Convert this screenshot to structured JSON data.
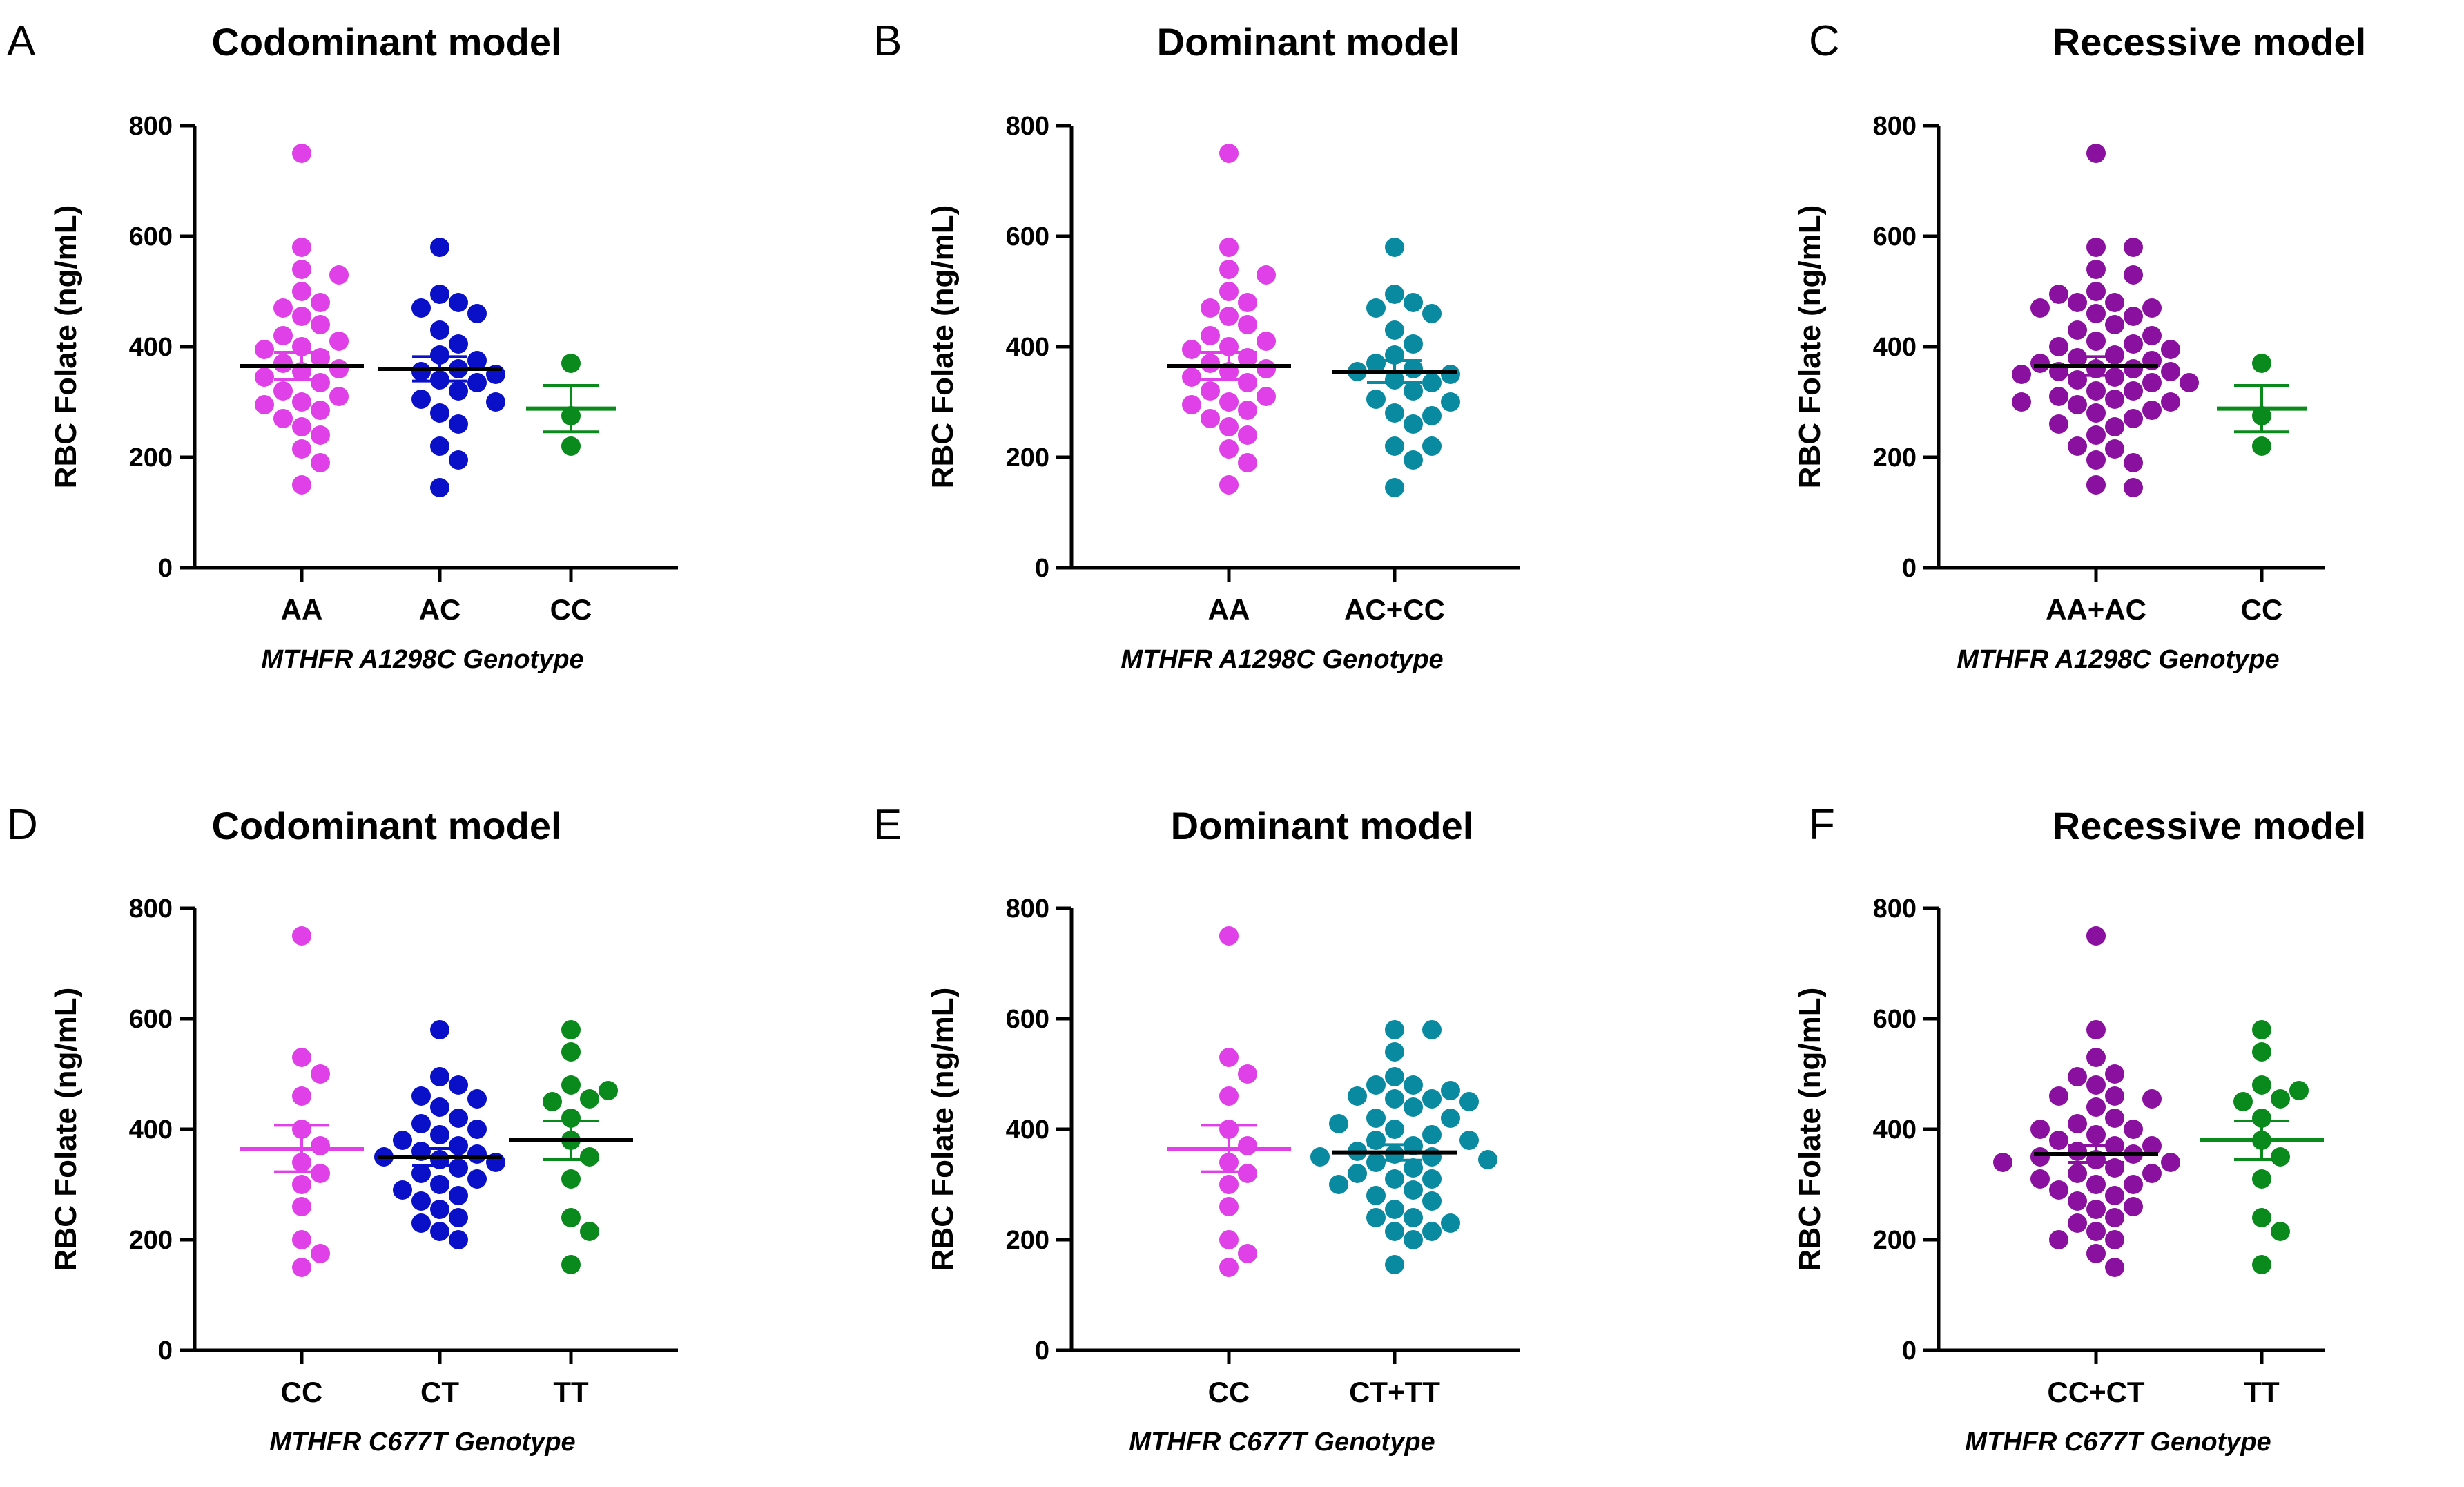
{
  "colors": {
    "magenta": "#e040e8",
    "blue": "#0a10c8",
    "green": "#0a8a1c",
    "teal": "#0a8aa0",
    "purple": "#8a10a0",
    "mean_line": "#000000"
  },
  "chart_data": [
    {
      "type": "scatter",
      "panel": "A",
      "title": "Codominant model",
      "ylabel": "RBC Folate (ng/mL)",
      "xlabel": "MTHFR A1298C Genotype",
      "ylim": [
        0,
        800
      ],
      "yticks": [
        0,
        200,
        400,
        600,
        800
      ],
      "groups": [
        {
          "name": "AA",
          "color": "magenta",
          "mean": 365,
          "sem": 25,
          "values": [
            750,
            580,
            540,
            530,
            500,
            480,
            470,
            455,
            440,
            420,
            410,
            400,
            395,
            380,
            370,
            360,
            355,
            345,
            335,
            320,
            310,
            300,
            295,
            285,
            270,
            255,
            240,
            215,
            190,
            150
          ]
        },
        {
          "name": "AC",
          "color": "blue",
          "mean": 360,
          "sem": 22,
          "values": [
            580,
            495,
            480,
            470,
            460,
            430,
            405,
            385,
            375,
            360,
            355,
            350,
            340,
            335,
            320,
            305,
            300,
            280,
            260,
            220,
            195,
            145
          ]
        },
        {
          "name": "CC",
          "color": "green",
          "mean": 288,
          "sem": 42,
          "values": [
            370,
            275,
            220
          ]
        }
      ]
    },
    {
      "type": "scatter",
      "panel": "B",
      "title": "Dominant model",
      "ylabel": "RBC Folate (ng/mL)",
      "xlabel": "MTHFR A1298C Genotype",
      "ylim": [
        0,
        800
      ],
      "yticks": [
        0,
        200,
        400,
        600,
        800
      ],
      "groups": [
        {
          "name": "AA",
          "color": "magenta",
          "mean": 365,
          "sem": 25,
          "values": [
            750,
            580,
            540,
            530,
            500,
            480,
            470,
            455,
            440,
            420,
            410,
            400,
            395,
            380,
            370,
            360,
            355,
            345,
            335,
            320,
            310,
            300,
            295,
            285,
            270,
            255,
            240,
            215,
            190,
            150
          ]
        },
        {
          "name": "AC+CC",
          "color": "teal",
          "mean": 355,
          "sem": 20,
          "values": [
            580,
            495,
            480,
            470,
            460,
            430,
            405,
            385,
            370,
            360,
            355,
            350,
            340,
            335,
            320,
            305,
            300,
            280,
            275,
            260,
            220,
            220,
            195,
            145
          ]
        }
      ]
    },
    {
      "type": "scatter",
      "panel": "C",
      "title": "Recessive model",
      "ylabel": "RBC Folate (ng/mL)",
      "xlabel": "MTHFR A1298C Genotype",
      "ylim": [
        0,
        800
      ],
      "yticks": [
        0,
        200,
        400,
        600,
        800
      ],
      "groups": [
        {
          "name": "AA+AC",
          "color": "purple",
          "mean": 365,
          "sem": 17,
          "values": [
            750,
            580,
            580,
            540,
            530,
            500,
            495,
            480,
            480,
            470,
            470,
            460,
            455,
            440,
            430,
            420,
            410,
            405,
            400,
            395,
            385,
            380,
            375,
            370,
            360,
            360,
            355,
            355,
            350,
            345,
            340,
            335,
            335,
            320,
            320,
            310,
            305,
            300,
            300,
            295,
            285,
            280,
            270,
            260,
            255,
            240,
            220,
            215,
            195,
            190,
            150,
            145
          ]
        },
        {
          "name": "CC",
          "color": "green",
          "mean": 288,
          "sem": 42,
          "values": [
            370,
            275,
            220
          ]
        }
      ]
    },
    {
      "type": "scatter",
      "panel": "D",
      "title": "Codominant model",
      "ylabel": "RBC Folate (ng/mL)",
      "xlabel": "MTHFR C677T Genotype",
      "ylim": [
        0,
        800
      ],
      "yticks": [
        0,
        200,
        400,
        600,
        800
      ],
      "groups": [
        {
          "name": "CC",
          "color": "magenta",
          "mean": 365,
          "sem": 42,
          "values": [
            750,
            530,
            500,
            460,
            400,
            370,
            340,
            320,
            300,
            260,
            200,
            175,
            150
          ]
        },
        {
          "name": "CT",
          "color": "blue",
          "mean": 350,
          "sem": 15,
          "values": [
            580,
            495,
            480,
            460,
            455,
            440,
            420,
            410,
            400,
            390,
            380,
            370,
            360,
            355,
            350,
            345,
            340,
            330,
            320,
            310,
            300,
            290,
            280,
            270,
            255,
            240,
            230,
            215,
            200
          ]
        },
        {
          "name": "TT",
          "color": "green",
          "mean": 380,
          "sem": 35,
          "values": [
            580,
            540,
            480,
            470,
            455,
            450,
            420,
            380,
            350,
            310,
            240,
            215,
            155
          ]
        }
      ]
    },
    {
      "type": "scatter",
      "panel": "E",
      "title": "Dominant model",
      "ylabel": "RBC Folate (ng/mL)",
      "xlabel": "MTHFR C677T Genotype",
      "ylim": [
        0,
        800
      ],
      "yticks": [
        0,
        200,
        400,
        600,
        800
      ],
      "groups": [
        {
          "name": "CC",
          "color": "magenta",
          "mean": 365,
          "sem": 42,
          "values": [
            750,
            530,
            500,
            460,
            400,
            370,
            340,
            320,
            300,
            260,
            200,
            175,
            150
          ]
        },
        {
          "name": "CT+TT",
          "color": "teal",
          "mean": 358,
          "sem": 14,
          "values": [
            580,
            580,
            540,
            495,
            480,
            480,
            470,
            460,
            455,
            455,
            450,
            440,
            420,
            420,
            410,
            400,
            390,
            380,
            380,
            370,
            360,
            355,
            350,
            350,
            345,
            340,
            330,
            320,
            310,
            310,
            300,
            290,
            280,
            270,
            255,
            240,
            240,
            230,
            215,
            215,
            200,
            155
          ]
        }
      ]
    },
    {
      "type": "scatter",
      "panel": "F",
      "title": "Recessive model",
      "ylabel": "RBC Folate (ng/mL)",
      "xlabel": "MTHFR C677T Genotype",
      "ylim": [
        0,
        800
      ],
      "yticks": [
        0,
        200,
        400,
        600,
        800
      ],
      "groups": [
        {
          "name": "CC+CT",
          "color": "purple",
          "mean": 355,
          "sem": 15,
          "values": [
            750,
            580,
            530,
            500,
            495,
            480,
            460,
            460,
            455,
            440,
            420,
            410,
            400,
            400,
            390,
            380,
            370,
            370,
            360,
            355,
            350,
            345,
            340,
            340,
            330,
            320,
            320,
            310,
            300,
            300,
            290,
            280,
            270,
            260,
            255,
            240,
            230,
            215,
            200,
            200,
            175,
            150
          ]
        },
        {
          "name": "TT",
          "color": "green",
          "mean": 380,
          "sem": 35,
          "values": [
            580,
            540,
            480,
            470,
            455,
            450,
            420,
            380,
            350,
            310,
            240,
            215,
            155
          ]
        }
      ]
    }
  ]
}
